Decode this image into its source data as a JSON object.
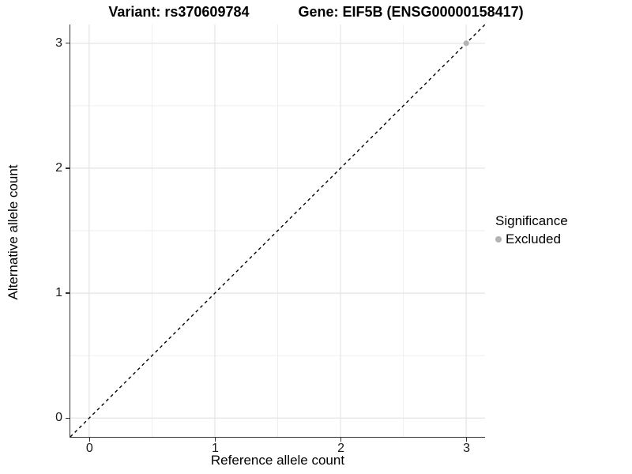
{
  "chart_data": {
    "type": "scatter",
    "title_left": "Variant: rs370609784",
    "title_right": "Gene: EIF5B (ENSG00000158417)",
    "xlabel": "Reference allele count",
    "ylabel": "Alternative allele count",
    "xlim": [
      -0.15,
      3.15
    ],
    "ylim": [
      -0.15,
      3.15
    ],
    "xticks": [
      0,
      1,
      2,
      3
    ],
    "yticks": [
      0,
      1,
      2,
      3
    ],
    "x_minor_ticks": [
      0.5,
      1.5,
      2.5
    ],
    "y_minor_ticks": [
      0.5,
      1.5,
      2.5
    ],
    "grid": true,
    "identity_line": {
      "type": "dashed",
      "color": "#000000",
      "from": [
        -0.15,
        -0.15
      ],
      "to": [
        3.15,
        3.15
      ]
    },
    "series": [
      {
        "name": "Excluded",
        "color": "#b3b3b3",
        "points": [
          [
            3,
            3
          ]
        ]
      }
    ],
    "legend": {
      "title": "Significance",
      "position": "right",
      "entries": [
        {
          "label": "Excluded",
          "color": "#b3b3b3"
        }
      ]
    },
    "colors": {
      "background": "#ffffff",
      "grid_major": "#e4e4e4",
      "grid_minor": "#ededed",
      "axis_line": "#333333",
      "tick_text": "#1a1a1a",
      "point": "#b3b3b3"
    }
  }
}
